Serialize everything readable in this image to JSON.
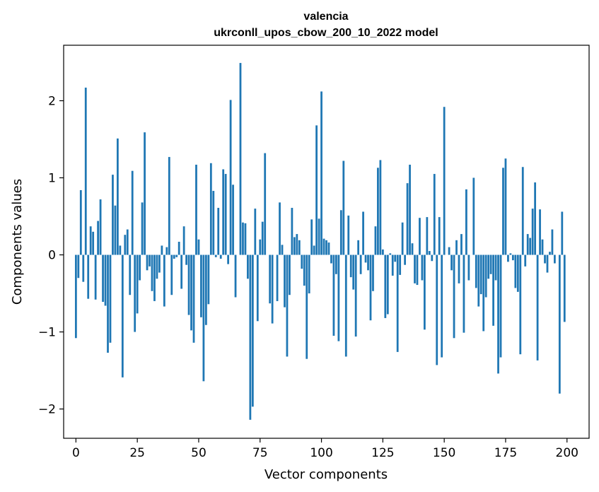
{
  "chart_data": {
    "type": "bar",
    "title": "valencia",
    "subtitle": "ukrconll_upos_cbow_200_10_2022 model",
    "xlabel": "Vector components",
    "ylabel": "Components values",
    "xlim": [
      -5,
      209
    ],
    "ylim": [
      -2.38,
      2.72
    ],
    "xticks": [
      0,
      25,
      50,
      75,
      100,
      125,
      150,
      175,
      200
    ],
    "xtick_labels": [
      "0",
      "25",
      "50",
      "75",
      "100",
      "125",
      "150",
      "175",
      "200"
    ],
    "yticks": [
      -2,
      -1,
      0,
      1,
      2
    ],
    "ytick_labels": [
      "−2",
      "−1",
      "0",
      "1",
      "2"
    ],
    "grid": false,
    "bar_color": "#1f77b4",
    "x": [
      0,
      1,
      2,
      3,
      4,
      5,
      6,
      7,
      8,
      9,
      10,
      11,
      12,
      13,
      14,
      15,
      16,
      17,
      18,
      19,
      20,
      21,
      22,
      23,
      24,
      25,
      26,
      27,
      28,
      29,
      30,
      31,
      32,
      33,
      34,
      35,
      36,
      37,
      38,
      39,
      40,
      41,
      42,
      43,
      44,
      45,
      46,
      47,
      48,
      49,
      50,
      51,
      52,
      53,
      54,
      55,
      56,
      57,
      58,
      59,
      60,
      61,
      62,
      63,
      64,
      65,
      66,
      67,
      68,
      69,
      70,
      71,
      72,
      73,
      74,
      75,
      76,
      77,
      78,
      79,
      80,
      81,
      82,
      83,
      84,
      85,
      86,
      87,
      88,
      89,
      90,
      91,
      92,
      93,
      94,
      95,
      96,
      97,
      98,
      99,
      100,
      101,
      102,
      103,
      104,
      105,
      106,
      107,
      108,
      109,
      110,
      111,
      112,
      113,
      114,
      115,
      116,
      117,
      118,
      119,
      120,
      121,
      122,
      123,
      124,
      125,
      126,
      127,
      128,
      129,
      130,
      131,
      132,
      133,
      134,
      135,
      136,
      137,
      138,
      139,
      140,
      141,
      142,
      143,
      144,
      145,
      146,
      147,
      148,
      149,
      150,
      151,
      152,
      153,
      154,
      155,
      156,
      157,
      158,
      159,
      160,
      161,
      162,
      163,
      164,
      165,
      166,
      167,
      168,
      169,
      170,
      171,
      172,
      173,
      174,
      175,
      176,
      177,
      178,
      179,
      180,
      181,
      182,
      183,
      184,
      185,
      186,
      187,
      188,
      189,
      190,
      191,
      192,
      193,
      194,
      195,
      196,
      197,
      198,
      199
    ],
    "values": [
      -1.08,
      -0.3,
      0.84,
      -0.35,
      2.17,
      -0.57,
      0.37,
      0.3,
      -0.58,
      0.44,
      0.72,
      -0.61,
      -0.66,
      -1.27,
      -1.14,
      1.04,
      0.64,
      1.51,
      0.12,
      -1.59,
      0.26,
      0.33,
      -0.52,
      1.09,
      -1.0,
      -0.76,
      -0.33,
      0.68,
      1.59,
      -0.2,
      -0.15,
      -0.47,
      -0.6,
      -0.31,
      -0.23,
      0.12,
      -0.67,
      0.1,
      1.27,
      -0.52,
      -0.05,
      -0.03,
      0.17,
      -0.44,
      0.37,
      -0.13,
      -0.78,
      -0.98,
      -1.14,
      1.17,
      0.2,
      -0.81,
      -1.64,
      -0.91,
      -0.64,
      1.19,
      0.83,
      -0.03,
      0.61,
      -0.05,
      1.11,
      1.05,
      -0.12,
      2.01,
      0.91,
      -0.55,
      0.0,
      2.49,
      0.42,
      0.41,
      -0.31,
      -2.14,
      -1.97,
      0.6,
      -0.86,
      0.2,
      0.43,
      1.32,
      0.0,
      -0.63,
      -0.89,
      0.0,
      -0.6,
      0.68,
      0.13,
      -0.68,
      -1.32,
      -0.52,
      0.61,
      0.23,
      0.27,
      0.19,
      -0.18,
      -0.4,
      -1.35,
      -0.5,
      0.46,
      0.12,
      1.68,
      0.47,
      2.12,
      0.21,
      0.19,
      0.16,
      -0.11,
      -1.05,
      -0.25,
      -1.12,
      0.58,
      1.22,
      -1.32,
      0.51,
      -0.29,
      -0.45,
      -1.06,
      0.19,
      -0.25,
      0.56,
      -0.1,
      -0.2,
      -0.85,
      -0.47,
      0.37,
      1.13,
      1.23,
      0.07,
      -0.82,
      -0.77,
      0.02,
      -0.27,
      -0.09,
      -1.26,
      -0.26,
      0.42,
      -0.13,
      0.93,
      1.17,
      0.15,
      -0.37,
      -0.39,
      0.48,
      -0.33,
      -0.97,
      0.49,
      0.05,
      -0.08,
      1.05,
      -1.43,
      0.49,
      -1.33,
      1.92,
      0.0,
      0.1,
      -0.2,
      -1.08,
      0.19,
      -0.37,
      0.27,
      -1.01,
      0.85,
      -0.33,
      0.0,
      1.0,
      -0.43,
      -0.67,
      -0.51,
      -0.99,
      -0.55,
      -0.31,
      -0.25,
      -0.92,
      -0.33,
      -1.54,
      -1.33,
      1.13,
      1.25,
      -0.09,
      0.02,
      -0.07,
      -0.43,
      -0.48,
      -1.29,
      1.14,
      -0.15,
      0.27,
      0.22,
      0.6,
      0.94,
      -1.37,
      0.59,
      0.2,
      -0.11,
      -0.23,
      0.04,
      0.33,
      -0.11,
      0.0,
      -1.8,
      0.56,
      -0.87
    ]
  }
}
